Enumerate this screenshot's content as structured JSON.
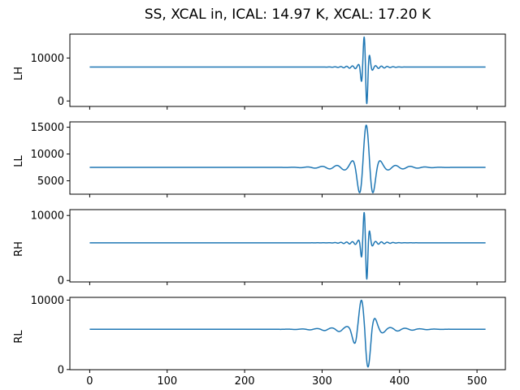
{
  "title": "SS, XCAL in, ICAL: 14.97 K, XCAL: 17.20 K",
  "colors": {
    "line": "#1f77b4",
    "background": "#ffffff",
    "axes_edge": "#000000",
    "text": "#000000"
  },
  "x_axis": {
    "ticks": [
      0,
      100,
      200,
      300,
      400,
      500
    ],
    "lim": [
      -25.6,
      536.6
    ],
    "data_range": [
      0,
      511
    ]
  },
  "chart_data": [
    {
      "type": "line",
      "ylabel": "LH",
      "yticks": [
        0,
        10000
      ],
      "ylim": [
        -1270,
        15560
      ],
      "show_xtick_labels": false,
      "observed": {
        "baseline": 7900,
        "peak_max": 14400,
        "peak_min": 0,
        "burst_center_x": 356
      },
      "signal": {
        "baseline": 7900,
        "amplitude": 7500,
        "center": 356,
        "period": 7.5,
        "sigma": 5,
        "mode": "sin",
        "asym": 1.22,
        "ring_amp": 0.05,
        "ring_sigma": 28
      }
    },
    {
      "type": "line",
      "ylabel": "LL",
      "yticks": [
        5000,
        10000,
        15000
      ],
      "ylim": [
        2500,
        16000
      ],
      "show_xtick_labels": false,
      "observed": {
        "baseline": 7500,
        "peak_max": 15300,
        "peak_min": 3200,
        "burst_center_x": 357
      },
      "signal": {
        "baseline": 7500,
        "amplitude": 7300,
        "center": 357,
        "period": 19,
        "sigma": 12,
        "mode": "cos",
        "asym": 1.0,
        "ring_amp": 0.08,
        "ring_sigma": 55
      }
    },
    {
      "type": "line",
      "ylabel": "RH",
      "yticks": [
        0,
        10000
      ],
      "ylim": [
        -220,
        10900
      ],
      "show_xtick_labels": false,
      "observed": {
        "baseline": 5800,
        "peak_max": 10350,
        "peak_min": 100,
        "burst_center_x": 356
      },
      "signal": {
        "baseline": 5800,
        "amplitude": 5000,
        "center": 356,
        "period": 7.5,
        "sigma": 5,
        "mode": "sin",
        "asym": 1.2,
        "ring_amp": 0.05,
        "ring_sigma": 28
      }
    },
    {
      "type": "line",
      "ylabel": "RL",
      "yticks": [
        0,
        10000
      ],
      "ylim": [
        -20,
        10390
      ],
      "show_xtick_labels": true,
      "observed": {
        "baseline": 5800,
        "peak_max": 9900,
        "peak_min": 450,
        "burst_center_x": 355
      },
      "signal": {
        "baseline": 5800,
        "amplitude": 4400,
        "center": 355,
        "period": 19,
        "sigma": 12,
        "mode": "sin",
        "asym": 1.3,
        "ring_amp": 0.08,
        "ring_sigma": 55
      }
    }
  ]
}
